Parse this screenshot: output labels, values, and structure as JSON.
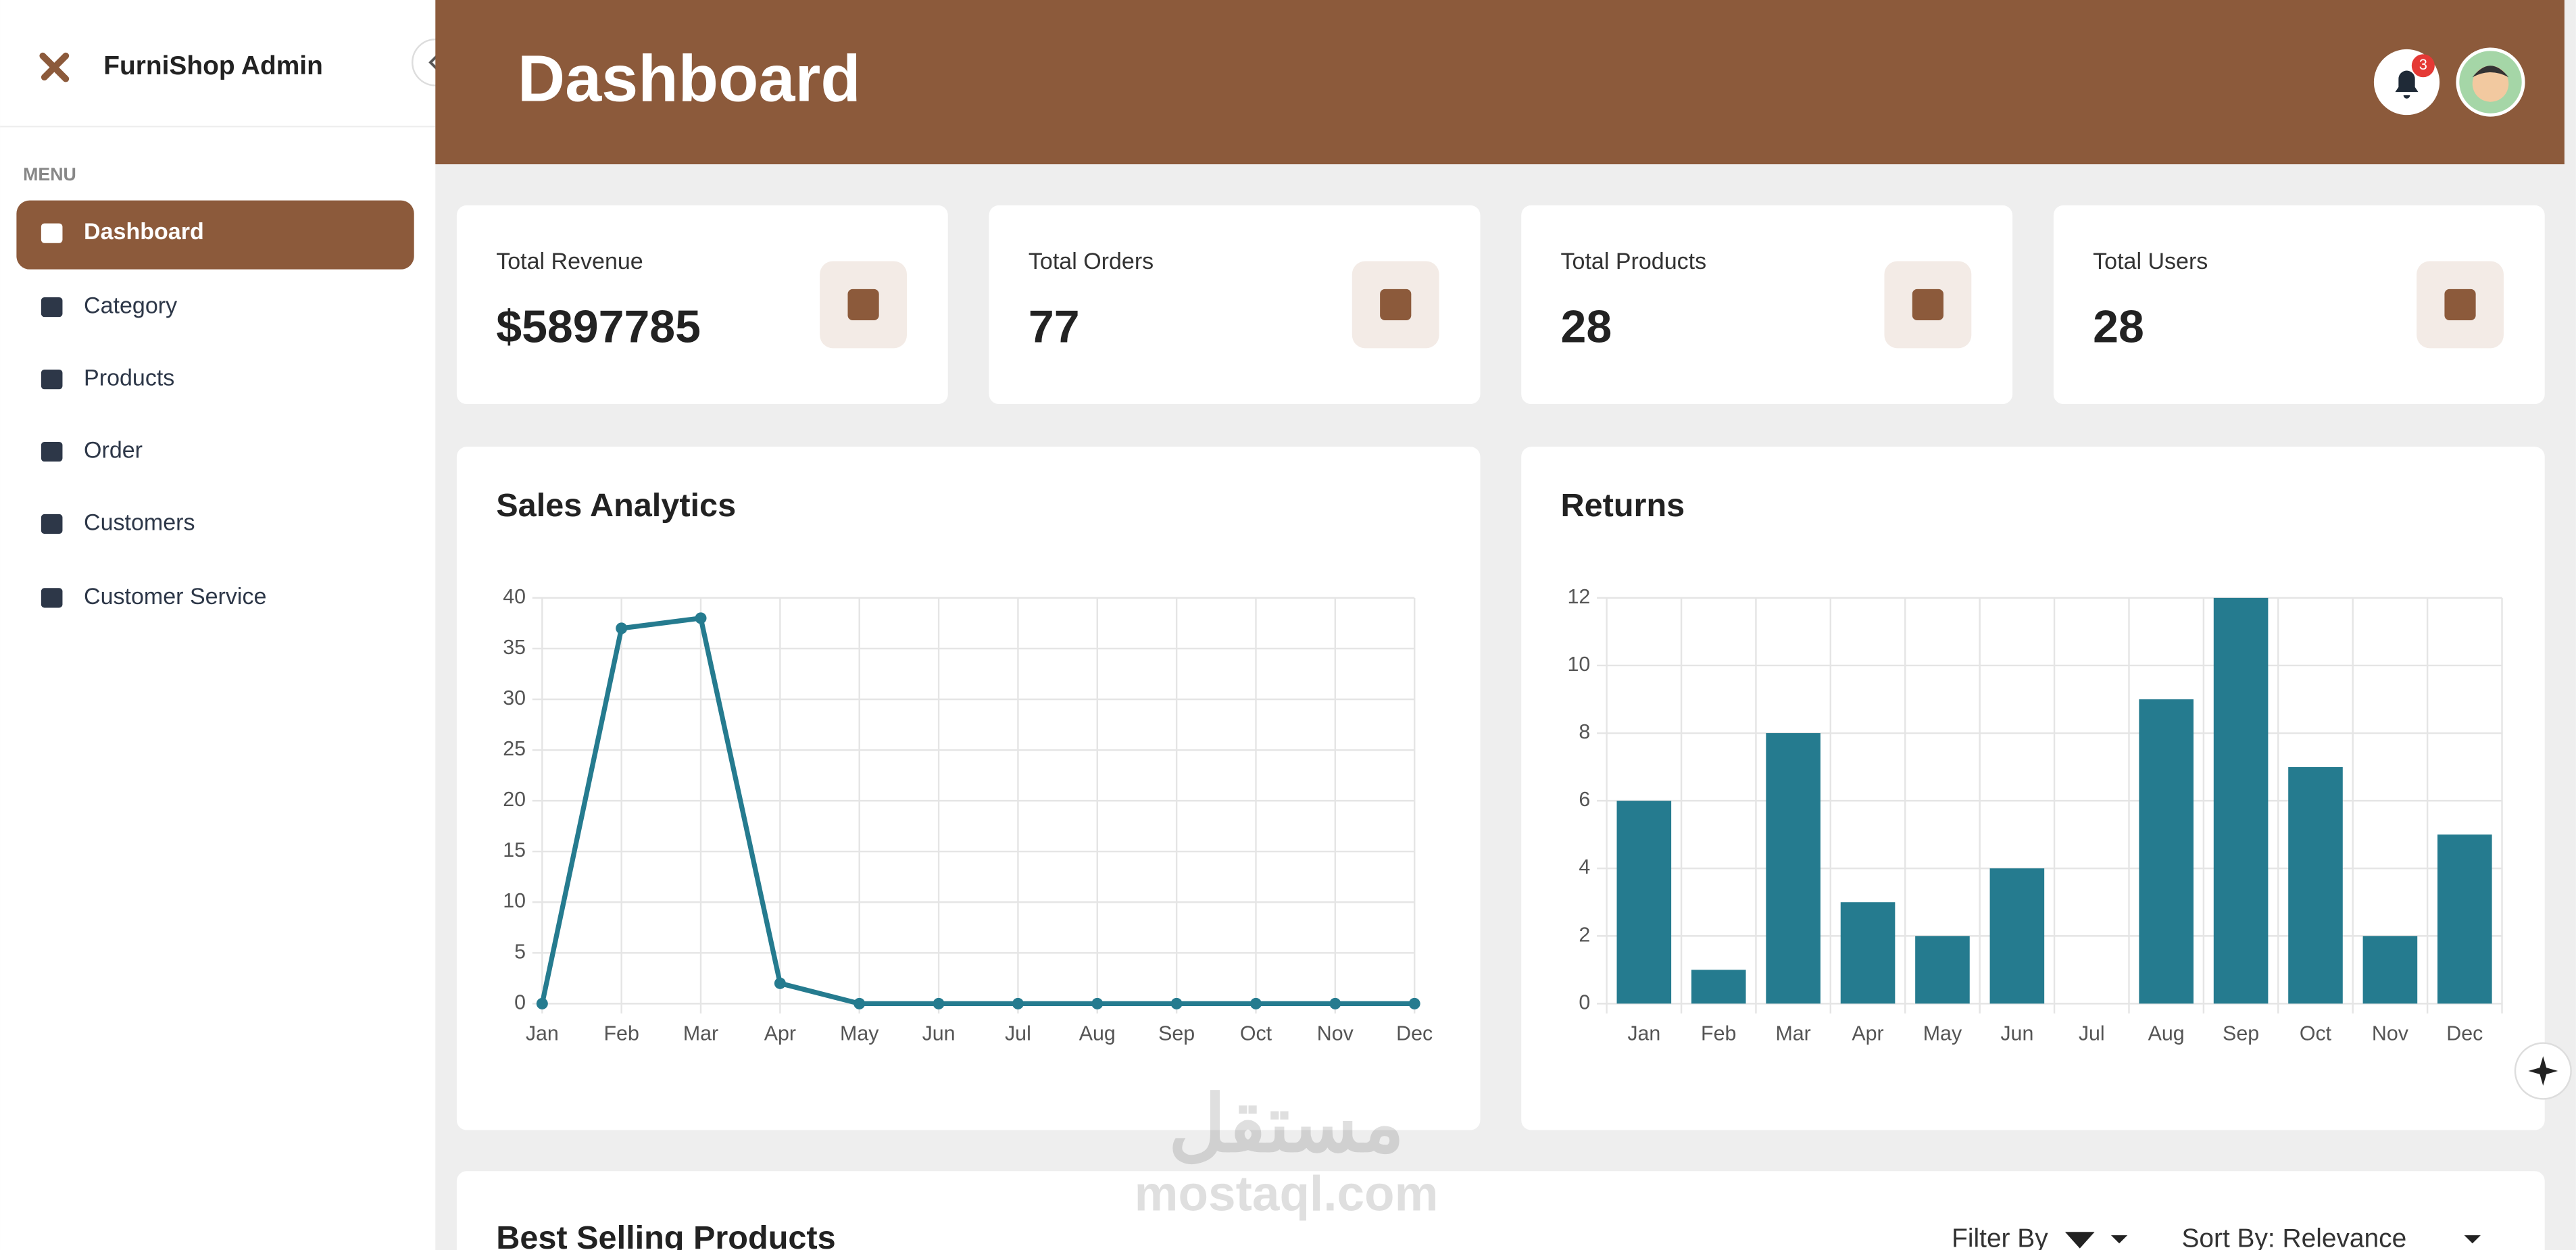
{
  "sidebar": {
    "brand": "FurniShop Admin",
    "menu_label": "MENU",
    "items": [
      "Dashboard",
      "Category",
      "Products",
      "Order",
      "Customers",
      "Customer Service"
    ]
  },
  "header": {
    "title": "Dashboard",
    "notification_count": "3"
  },
  "stats": [
    {
      "label": "Total Revenue",
      "value": "$5897785"
    },
    {
      "label": "Total Orders",
      "value": "77"
    },
    {
      "label": "Total Products",
      "value": "28"
    },
    {
      "label": "Total Users",
      "value": "28"
    }
  ],
  "chart_data": [
    {
      "type": "line",
      "title": "Sales Analytics",
      "categories": [
        "Jan",
        "Feb",
        "Mar",
        "Apr",
        "May",
        "Jun",
        "Jul",
        "Aug",
        "Sep",
        "Oct",
        "Nov",
        "Dec"
      ],
      "values": [
        0,
        37,
        38,
        2,
        0,
        0,
        0,
        0,
        0,
        0,
        0,
        0
      ],
      "color": "#257b8f",
      "ylim": [
        0,
        40
      ],
      "yticks": [
        0,
        5,
        10,
        15,
        20,
        25,
        30,
        35,
        40
      ],
      "grid": true
    },
    {
      "type": "bar",
      "title": "Returns",
      "categories": [
        "Jan",
        "Feb",
        "Mar",
        "Apr",
        "May",
        "Jun",
        "Jul",
        "Aug",
        "Sep",
        "Oct",
        "Nov",
        "Dec"
      ],
      "values": [
        6,
        1,
        8,
        3,
        2,
        4,
        0,
        9,
        12,
        7,
        2,
        5
      ],
      "color": "#257b8f",
      "ylim": [
        0,
        12
      ],
      "yticks": [
        0,
        2,
        4,
        6,
        8,
        10,
        12
      ],
      "grid": true
    }
  ],
  "products_section": {
    "title": "Best Selling Products",
    "filter": "Filter By",
    "sort": "Sort By: Relevance"
  },
  "watermark": {
    "arabic": "مستقل",
    "site": "mostaql.com"
  }
}
